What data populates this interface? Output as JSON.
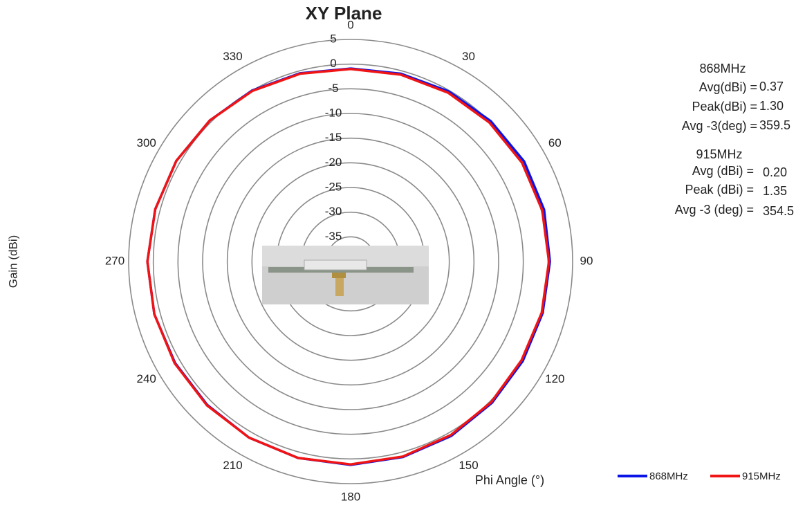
{
  "chart_data": {
    "type": "polar",
    "title": "XY Plane",
    "x_label": "Phi Angle (°)",
    "y_label": "Gain (dBi)",
    "theta": [
      0,
      15,
      30,
      45,
      60,
      75,
      90,
      105,
      120,
      135,
      150,
      165,
      180,
      195,
      210,
      225,
      240,
      255,
      270,
      285,
      300,
      315,
      330,
      345
    ],
    "thetaticks": [
      0,
      30,
      60,
      90,
      120,
      150,
      180,
      210,
      240,
      270,
      300,
      330
    ],
    "rlim": [
      -40,
      5
    ],
    "rticks": [
      5,
      0,
      -5,
      -10,
      -15,
      -20,
      -25,
      -30,
      -35
    ],
    "series": [
      {
        "name": "868MHz",
        "color": "#0a14e6",
        "values": [
          -0.9,
          -0.6,
          -0.2,
          0.2,
          0.6,
          0.6,
          0.4,
          0.3,
          0.3,
          0.5,
          0.8,
          1.0,
          1.2,
          1.2,
          1.2,
          1.1,
          1.1,
          1.2,
          1.2,
          1.0,
          0.8,
          0.4,
          0.0,
          -0.5
        ]
      },
      {
        "name": "915MHz",
        "color": "#f01414",
        "values": [
          -1.0,
          -0.8,
          -0.5,
          -0.2,
          0.1,
          0.2,
          0.2,
          0.1,
          0.0,
          0.3,
          0.6,
          0.9,
          1.1,
          1.2,
          1.2,
          1.2,
          1.2,
          1.2,
          1.2,
          1.0,
          0.8,
          0.4,
          -0.1,
          -0.6
        ]
      }
    ],
    "annotations": [
      {
        "header": "868MHz",
        "lines": [
          [
            "Avg(dBi) =",
            "0.37"
          ],
          [
            "Peak(dBi) =",
            "1.30"
          ],
          [
            "Avg -3(deg) =",
            "359.5"
          ]
        ]
      },
      {
        "header": "915MHz",
        "lines": [
          [
            "Avg (dBi) =",
            "0.20"
          ],
          [
            "Peak (dBi) =",
            "1.35"
          ],
          [
            "Avg -3 (deg) =",
            "354.5"
          ]
        ]
      }
    ]
  }
}
